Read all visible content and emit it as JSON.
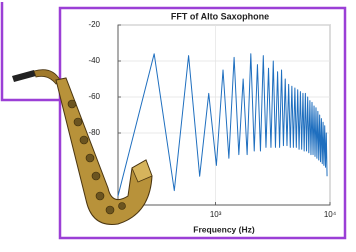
{
  "chart_data": {
    "type": "line",
    "title": "FFT of Alto Saxophone",
    "x_label": "Frequency (Hz)",
    "x": [
      140,
      290,
      435,
      580,
      725,
      870,
      1015,
      1160,
      1305,
      1450,
      1595,
      1740,
      1885,
      2030,
      2175,
      2320,
      2465,
      2610,
      2755,
      2900,
      3045,
      3190,
      3335,
      3480,
      3625,
      3770,
      3915,
      4060,
      4205,
      4350,
      4495,
      4640,
      4785,
      4930,
      5075,
      5220,
      5365,
      5510,
      5655,
      5800,
      5945,
      6090,
      6235,
      6380,
      6525,
      6670,
      6815,
      6960,
      7105,
      7250,
      7395,
      7540,
      7685,
      7830,
      7975,
      8120,
      8265,
      8410,
      8555,
      8700,
      8845,
      8990,
      9135,
      9280,
      9425
    ],
    "values": [
      -115,
      -36,
      -112,
      -37,
      -104,
      -58,
      -98,
      -45,
      -94,
      -38,
      -92,
      -50,
      -92,
      -36,
      -90,
      -42,
      -90,
      -37,
      -88,
      -44,
      -88,
      -40,
      -88,
      -46,
      -88,
      -45,
      -87,
      -50,
      -87,
      -53,
      -88,
      -54,
      -88,
      -55,
      -88,
      -56,
      -89,
      -57,
      -89,
      -58,
      -90,
      -58,
      -90,
      -60,
      -91,
      -62,
      -92,
      -63,
      -92,
      -65,
      -93,
      -66,
      -94,
      -68,
      -95,
      -70,
      -96,
      -72,
      -97,
      -74,
      -98,
      -76,
      -99,
      -80,
      -104
    ],
    "color": "#1f6fbf",
    "x_scale": "log",
    "xlim": [
      140,
      10000
    ],
    "xticks": [
      {
        "value": 1000,
        "label": "10³"
      },
      {
        "value": 10000,
        "label": "10⁴"
      }
    ],
    "ylim": [
      -120,
      -20
    ],
    "yticks": [
      -20,
      -40,
      -60,
      -80
    ],
    "grid": true
  }
}
